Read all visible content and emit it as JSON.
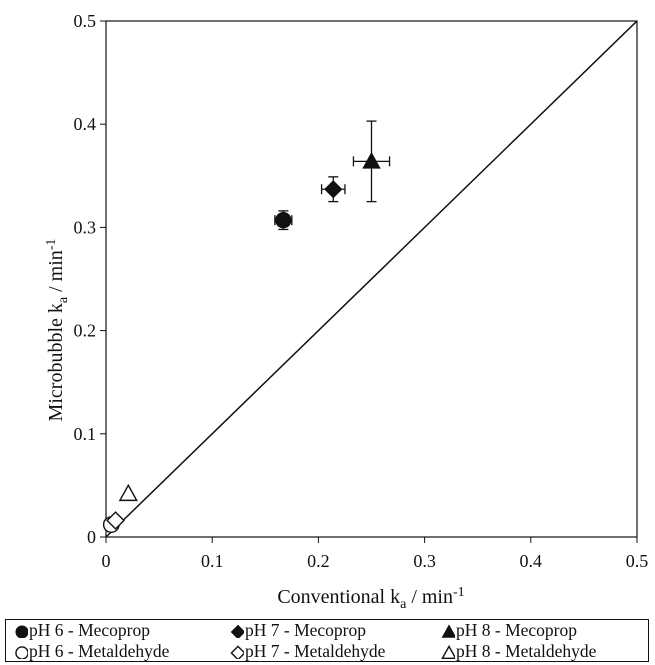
{
  "chart_data": {
    "type": "scatter",
    "title": "",
    "xlabel": "Conventional k",
    "xlabel_sub": "a",
    "xlabel_unit": " / min",
    "xlabel_sup": "-1",
    "ylabel": "Microbubble k",
    "ylabel_sub": "a",
    "ylabel_unit": " / min",
    "ylabel_sup": "-1",
    "xlim": [
      0,
      0.5
    ],
    "ylim": [
      0,
      0.5
    ],
    "xticks": [
      "0",
      "0.1",
      "0.2",
      "0.3",
      "0.4",
      "0.5"
    ],
    "yticks": [
      "0",
      "0.1",
      "0.2",
      "0.3",
      "0.4",
      "0.5"
    ],
    "grid": false,
    "reference_line": {
      "x": [
        0,
        0.5
      ],
      "y": [
        0,
        0.5
      ]
    },
    "legend_position": "bottom",
    "series": [
      {
        "name": "pH 6 - Mecoprop",
        "marker": "circle",
        "filled": true,
        "x": 0.167,
        "y": 0.307,
        "xerr": 0.008,
        "yerr": 0.009
      },
      {
        "name": "pH 7 - Mecoprop",
        "marker": "diamond",
        "filled": true,
        "x": 0.214,
        "y": 0.337,
        "xerr": 0.011,
        "yerr": 0.012
      },
      {
        "name": "pH 8 - Mecoprop",
        "marker": "triangle",
        "filled": true,
        "x": 0.25,
        "y": 0.364,
        "xerr": 0.017,
        "yerr": 0.039
      },
      {
        "name": "pH 6 - Metaldehyde",
        "marker": "circle",
        "filled": false,
        "x": 0.005,
        "y": 0.012,
        "xerr": 0,
        "yerr": 0
      },
      {
        "name": "pH 7 - Metaldehyde",
        "marker": "diamond",
        "filled": false,
        "x": 0.009,
        "y": 0.016,
        "xerr": 0,
        "yerr": 0
      },
      {
        "name": "pH 8 - Metaldehyde",
        "marker": "triangle",
        "filled": false,
        "x": 0.021,
        "y": 0.042,
        "xerr": 0,
        "yerr": 0
      }
    ]
  }
}
